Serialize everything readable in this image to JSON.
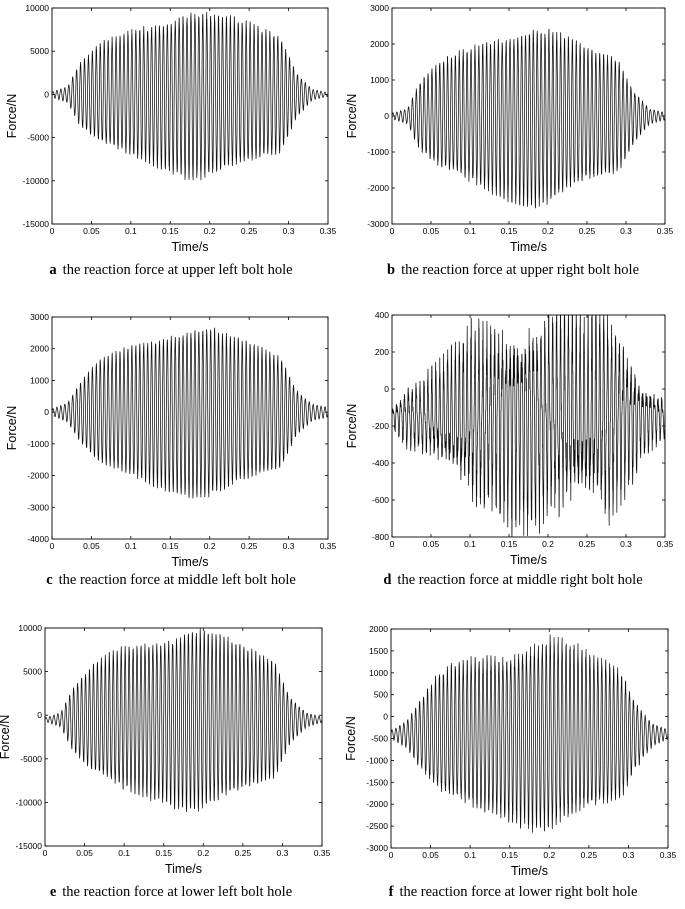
{
  "chart_data": [
    {
      "type": "line",
      "letter": "a",
      "caption": "the reaction force at upper left bolt hole",
      "xlabel": "Time/s",
      "ylabel": "Force/N",
      "xlim": [
        0,
        0.35
      ],
      "ylim": [
        -15000,
        10000
      ],
      "xticks": [
        0,
        0.05,
        0.1,
        0.15,
        0.2,
        0.25,
        0.3,
        0.35
      ],
      "xtick_labels": [
        "0",
        "0.05",
        "0.1",
        "0.15",
        "0.2",
        "0.25",
        "0.3",
        "0.35"
      ],
      "yticks": [
        -15000,
        -10000,
        -5000,
        0,
        5000,
        10000
      ],
      "ytick_labels": [
        "-15000",
        "-10000",
        "-5000",
        "0",
        "5000",
        "10000"
      ],
      "grid": false,
      "signal": {
        "freq_hz": 200,
        "offset": 0,
        "noise": 0.05,
        "envelope_t": [
          0,
          0.02,
          0.035,
          0.06,
          0.1,
          0.15,
          0.175,
          0.2,
          0.25,
          0.29,
          0.31,
          0.33,
          0.35
        ],
        "envelope_amp": [
          300,
          900,
          3500,
          5500,
          7000,
          8500,
          9500,
          9200,
          7800,
          6500,
          2500,
          600,
          200
        ]
      }
    },
    {
      "type": "line",
      "letter": "b",
      "caption": "the reaction force at upper right bolt hole",
      "xlabel": "Time/s",
      "ylabel": "Force/N",
      "xlim": [
        0,
        0.35
      ],
      "ylim": [
        -3000,
        3000
      ],
      "xticks": [
        0,
        0.05,
        0.1,
        0.15,
        0.2,
        0.25,
        0.3,
        0.35
      ],
      "xtick_labels": [
        "0",
        "0.05",
        "0.1",
        "0.15",
        "0.2",
        "0.25",
        "0.3",
        "0.35"
      ],
      "yticks": [
        -3000,
        -2000,
        -1000,
        0,
        1000,
        2000,
        3000
      ],
      "ytick_labels": [
        "-3000",
        "-2000",
        "-1000",
        "0",
        "1000",
        "2000",
        "3000"
      ],
      "grid": false,
      "signal": {
        "freq_hz": 200,
        "offset": 0,
        "noise": 0.06,
        "envelope_t": [
          0,
          0.02,
          0.035,
          0.06,
          0.1,
          0.15,
          0.18,
          0.2,
          0.25,
          0.29,
          0.31,
          0.33,
          0.35
        ],
        "envelope_amp": [
          80,
          200,
          900,
          1400,
          1800,
          2200,
          2400,
          2300,
          1800,
          1500,
          700,
          200,
          100
        ]
      }
    },
    {
      "type": "line",
      "letter": "c",
      "caption": "the reaction force at middle left bolt hole",
      "xlabel": "Time/s",
      "ylabel": "Force/N",
      "xlim": [
        0,
        0.35
      ],
      "ylim": [
        -4000,
        3000
      ],
      "xticks": [
        0,
        0.05,
        0.1,
        0.15,
        0.2,
        0.25,
        0.3,
        0.35
      ],
      "xtick_labels": [
        "0",
        "0.05",
        "0.1",
        "0.15",
        "0.2",
        "0.25",
        "0.3",
        "0.35"
      ],
      "yticks": [
        -4000,
        -3000,
        -2000,
        -1000,
        0,
        1000,
        2000,
        3000
      ],
      "ytick_labels": [
        "-4000",
        "-3000",
        "-2000",
        "-1000",
        "0",
        "1000",
        "2000",
        "3000"
      ],
      "grid": false,
      "signal": {
        "freq_hz": 200,
        "offset": 0,
        "noise": 0.04,
        "envelope_t": [
          0,
          0.02,
          0.035,
          0.06,
          0.1,
          0.15,
          0.18,
          0.2,
          0.25,
          0.29,
          0.31,
          0.33,
          0.35
        ],
        "envelope_amp": [
          100,
          300,
          900,
          1600,
          2000,
          2400,
          2600,
          2600,
          2100,
          1700,
          700,
          250,
          150
        ]
      }
    },
    {
      "type": "line",
      "letter": "d",
      "caption": "the reaction force at middle right bolt hole",
      "xlabel": "Time/s",
      "ylabel": "Force/N",
      "xlim": [
        0,
        0.35
      ],
      "ylim": [
        -800,
        400
      ],
      "xticks": [
        0,
        0.05,
        0.1,
        0.15,
        0.2,
        0.25,
        0.3,
        0.35
      ],
      "xtick_labels": [
        "0",
        "0.05",
        "0.1",
        "0.15",
        "0.2",
        "0.25",
        "0.3",
        "0.35"
      ],
      "yticks": [
        -800,
        -600,
        -400,
        -200,
        0,
        200,
        400
      ],
      "ytick_labels": [
        "-800",
        "-600",
        "-400",
        "-200",
        "0",
        "200",
        "400"
      ],
      "grid": false,
      "signal": {
        "freq_hz": 200,
        "offset": -150,
        "noise": 0.35,
        "envelope_t": [
          0,
          0.02,
          0.04,
          0.06,
          0.1,
          0.15,
          0.2,
          0.25,
          0.28,
          0.3,
          0.32,
          0.35
        ],
        "envelope_amp": [
          40,
          120,
          150,
          200,
          350,
          400,
          420,
          380,
          420,
          300,
          150,
          80
        ]
      }
    },
    {
      "type": "line",
      "letter": "e",
      "caption": "the reaction force at lower left bolt hole",
      "xlabel": "Time/s",
      "ylabel": "Force/N",
      "xlim": [
        0,
        0.35
      ],
      "ylim": [
        -15000,
        10000
      ],
      "xticks": [
        0,
        0.05,
        0.1,
        0.15,
        0.2,
        0.25,
        0.3,
        0.35
      ],
      "xtick_labels": [
        "0",
        "0.05",
        "0.1",
        "0.15",
        "0.2",
        "0.25",
        "0.3",
        "0.35"
      ],
      "yticks": [
        -15000,
        -10000,
        -5000,
        0,
        5000,
        10000
      ],
      "ytick_labels": [
        "-15000",
        "-10000",
        "-5000",
        "0",
        "5000",
        "10000"
      ],
      "grid": false,
      "signal": {
        "freq_hz": 200,
        "offset": -500,
        "noise": 0.05,
        "envelope_t": [
          0,
          0.02,
          0.035,
          0.06,
          0.1,
          0.15,
          0.18,
          0.2,
          0.25,
          0.29,
          0.31,
          0.33,
          0.35
        ],
        "envelope_amp": [
          200,
          800,
          3500,
          6000,
          8000,
          9000,
          10000,
          10000,
          8000,
          6500,
          2500,
          800,
          300
        ]
      }
    },
    {
      "type": "line",
      "letter": "f",
      "caption": "the reaction force at lower right bolt hole",
      "xlabel": "Time/s",
      "ylabel": "Force/N",
      "xlim": [
        0,
        0.35
      ],
      "ylim": [
        -3000,
        2000
      ],
      "xticks": [
        0,
        0.05,
        0.1,
        0.15,
        0.2,
        0.25,
        0.3,
        0.35
      ],
      "xtick_labels": [
        "0",
        "0.05",
        "0.1",
        "0.15",
        "0.2",
        "0.25",
        "0.3",
        "0.35"
      ],
      "yticks": [
        -3000,
        -2500,
        -2000,
        -1500,
        -1000,
        -500,
        0,
        500,
        1000,
        1500,
        2000
      ],
      "ytick_labels": [
        "-3000",
        "-2500",
        "-2000",
        "-1500",
        "-1000",
        "-500",
        "0",
        "500",
        "1000",
        "1500",
        "2000"
      ],
      "grid": false,
      "signal": {
        "freq_hz": 200,
        "offset": -400,
        "noise": 0.08,
        "envelope_t": [
          0,
          0.02,
          0.035,
          0.06,
          0.1,
          0.15,
          0.18,
          0.2,
          0.25,
          0.29,
          0.31,
          0.33,
          0.35
        ],
        "envelope_amp": [
          80,
          300,
          700,
          1300,
          1600,
          1800,
          2000,
          2100,
          1700,
          1400,
          700,
          250,
          100
        ]
      }
    }
  ]
}
